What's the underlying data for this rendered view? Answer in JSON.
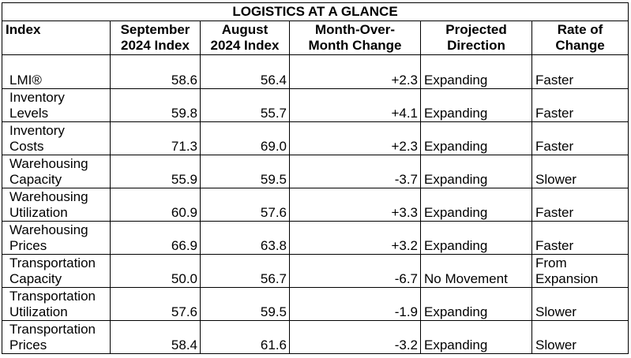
{
  "table": {
    "title": "LOGISTICS AT A GLANCE",
    "headers": {
      "index": "Index",
      "sep_l1": "September",
      "sep_l2": "2024 Index",
      "aug_l1": "August",
      "aug_l2": "2024 Index",
      "mom_l1": "Month-Over-",
      "mom_l2": "Month Change",
      "dir_l1": "Projected",
      "dir_l2": "Direction",
      "rate_l1": "Rate of",
      "rate_l2": "Change"
    },
    "rows": [
      {
        "label_l1": "LMI®",
        "label_l2": "",
        "sep": "58.6",
        "aug": "56.4",
        "change": "+2.3",
        "direction": "Expanding",
        "rate_l1": "Faster",
        "rate_l2": ""
      },
      {
        "label_l1": "Inventory",
        "label_l2": "Levels",
        "sep": "59.8",
        "aug": "55.7",
        "change": "+4.1",
        "direction": "Expanding",
        "rate_l1": "Faster",
        "rate_l2": ""
      },
      {
        "label_l1": "Inventory",
        "label_l2": "Costs",
        "sep": "71.3",
        "aug": "69.0",
        "change": "+2.3",
        "direction": "Expanding",
        "rate_l1": "Faster",
        "rate_l2": ""
      },
      {
        "label_l1": "Warehousing",
        "label_l2": "Capacity",
        "sep": "55.9",
        "aug": "59.5",
        "change": "-3.7",
        "direction": "Expanding",
        "rate_l1": "Slower",
        "rate_l2": ""
      },
      {
        "label_l1": "Warehousing",
        "label_l2": "Utilization",
        "sep": "60.9",
        "aug": "57.6",
        "change": "+3.3",
        "direction": "Expanding",
        "rate_l1": "Faster",
        "rate_l2": ""
      },
      {
        "label_l1": "Warehousing",
        "label_l2": "Prices",
        "sep": "66.9",
        "aug": "63.8",
        "change": "+3.2",
        "direction": "Expanding",
        "rate_l1": "Faster",
        "rate_l2": ""
      },
      {
        "label_l1": "Transportation",
        "label_l2": "Capacity",
        "sep": "50.0",
        "aug": "56.7",
        "change": "-6.7",
        "direction": "No Movement",
        "rate_l1": "From",
        "rate_l2": "Expansion"
      },
      {
        "label_l1": "Transportation",
        "label_l2": "Utilization",
        "sep": "57.6",
        "aug": "59.5",
        "change": "-1.9",
        "direction": "Expanding",
        "rate_l1": "Slower",
        "rate_l2": ""
      },
      {
        "label_l1": "Transportation",
        "label_l2": "Prices",
        "sep": "58.4",
        "aug": "61.6",
        "change": "-3.2",
        "direction": "Expanding",
        "rate_l1": "Slower",
        "rate_l2": ""
      }
    ]
  }
}
